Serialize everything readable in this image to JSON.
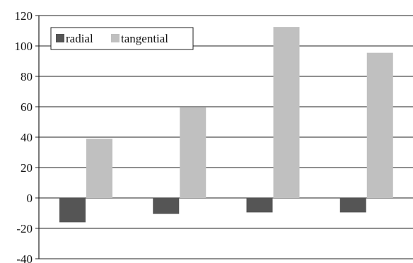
{
  "chart_data": {
    "type": "bar",
    "title": "",
    "xlabel": "",
    "ylabel": "",
    "categories": [
      "",
      "",
      "",
      ""
    ],
    "series": [
      {
        "name": "radial",
        "color": "#555555",
        "values": [
          -16,
          -10.5,
          -9.5,
          -9.5
        ]
      },
      {
        "name": "tangential",
        "color": "#c0c0c0",
        "values": [
          39,
          59.5,
          112.5,
          95.5
        ]
      }
    ],
    "ylim": [
      -40,
      120
    ],
    "yticks": [
      -40,
      -20,
      0,
      20,
      40,
      60,
      80,
      100,
      120
    ],
    "ytick_labels": [
      "-40",
      "-20",
      "0",
      "20",
      "40",
      "60",
      "80",
      "100",
      "120"
    ],
    "grid": true,
    "legend_position": "top-left"
  }
}
